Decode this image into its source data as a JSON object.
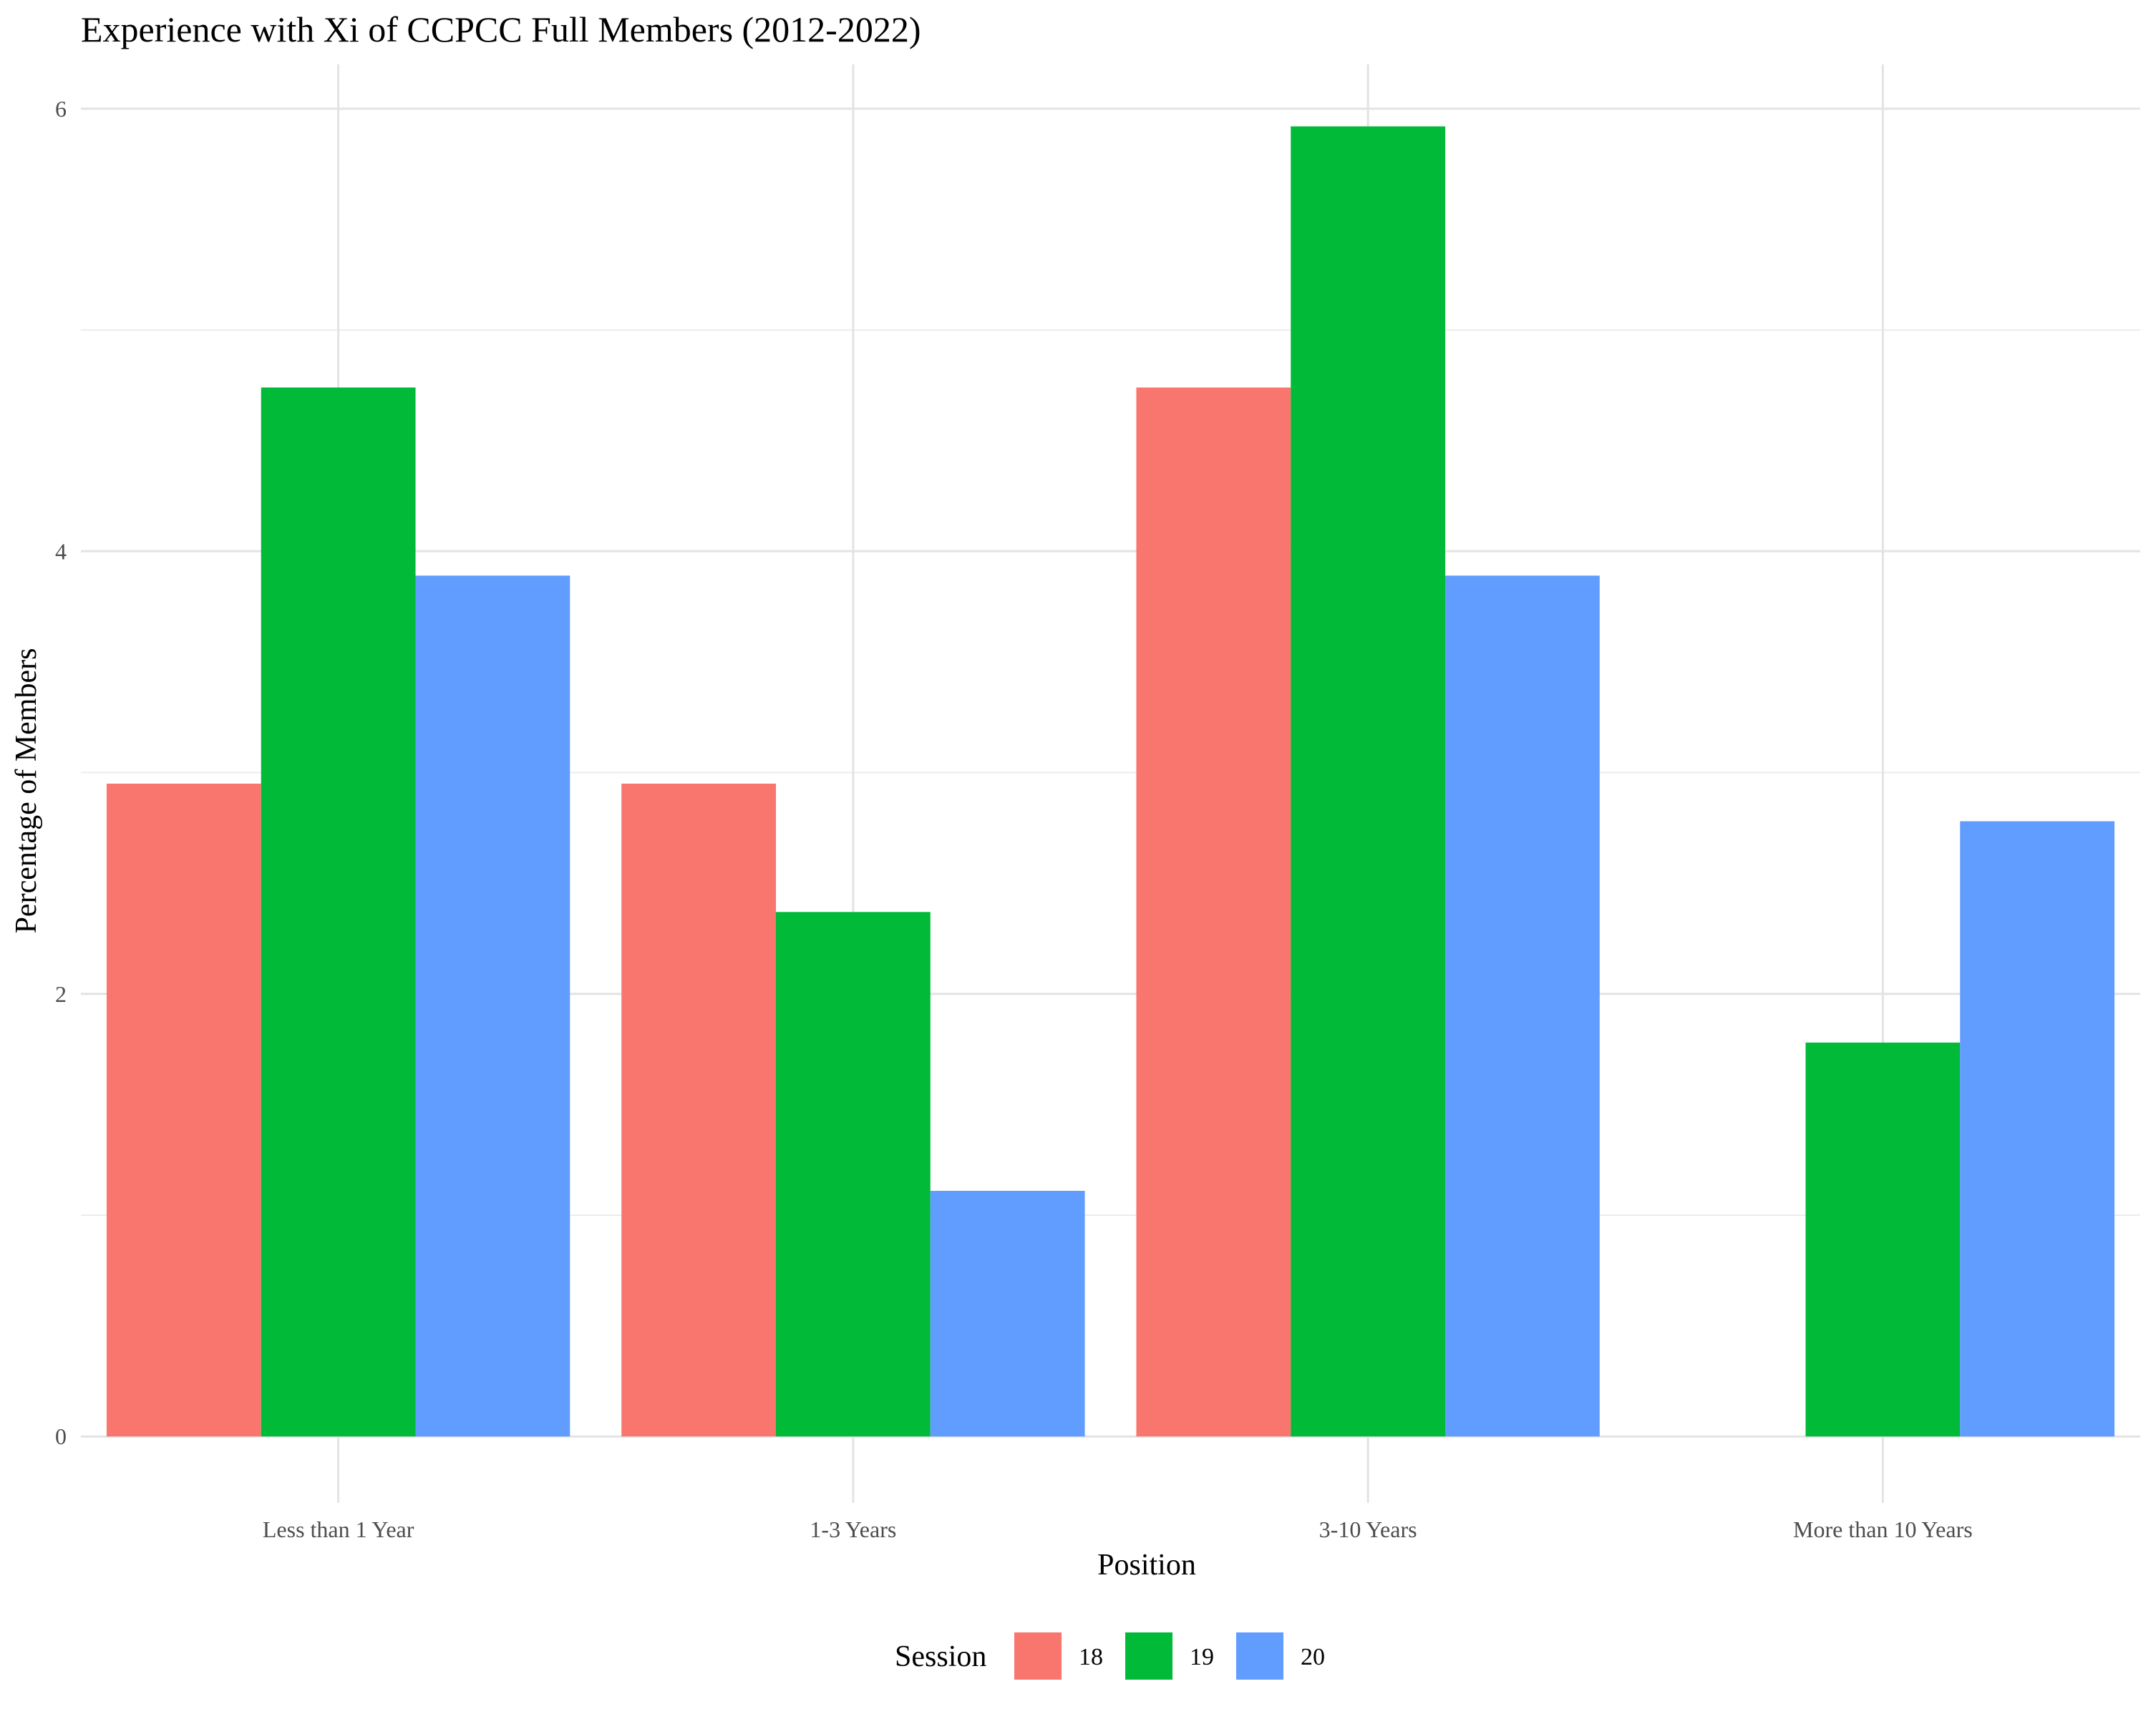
{
  "chart_data": {
    "type": "bar",
    "title": "Experience with Xi of CCPCC Full Members (2012-2022)",
    "xlabel": "Position",
    "ylabel": "Percentage of Members",
    "categories": [
      "Less than 1 Year",
      "1-3 Years",
      "3-10 Years",
      "More than 10 Years"
    ],
    "series": [
      {
        "name": "18",
        "color": "#F8766D",
        "values": [
          2.95,
          2.95,
          4.74,
          0
        ]
      },
      {
        "name": "19",
        "color": "#00BA38",
        "values": [
          4.74,
          2.37,
          5.92,
          1.78
        ]
      },
      {
        "name": "20",
        "color": "#619CFF",
        "values": [
          3.89,
          1.11,
          3.89,
          2.78
        ]
      }
    ],
    "ylim": [
      -0.3,
      6.2
    ],
    "yticks": [
      0,
      2,
      4,
      6
    ],
    "grid": true,
    "legend": {
      "title": "Session",
      "position": "bottom"
    }
  }
}
